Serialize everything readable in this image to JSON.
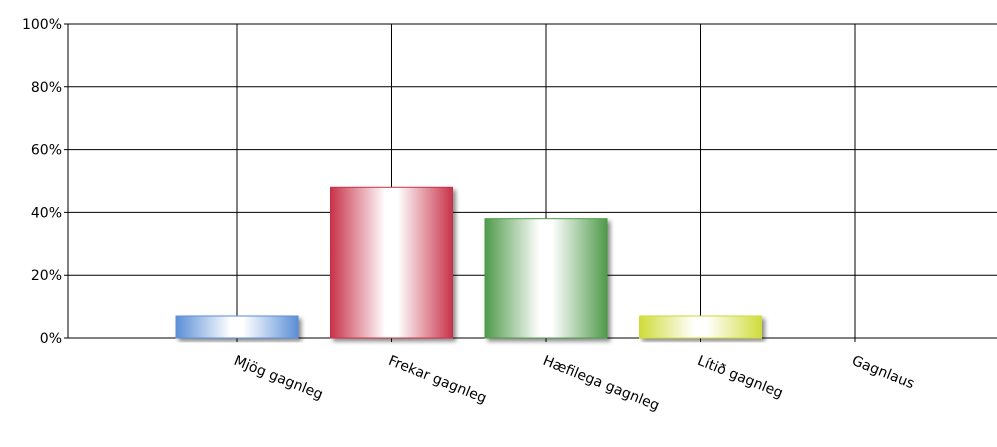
{
  "chart_data": {
    "type": "bar",
    "categories": [
      "Mjög gagnleg",
      "Frekar gagnleg",
      "Hæfilega gagnleg",
      "Lítið gagnleg",
      "Gagnlaus"
    ],
    "values": [
      7,
      48,
      38,
      7,
      0
    ],
    "yticks": [
      "0%",
      "20%",
      "40%",
      "60%",
      "80%",
      "100%"
    ],
    "ylim": [
      0,
      100
    ],
    "grid": true,
    "colors": [
      "#5b8fd6",
      "#c8324a",
      "#4f9a4a",
      "#cfdc3a",
      "#999999"
    ],
    "title": "",
    "xlabel": "",
    "ylabel": ""
  }
}
